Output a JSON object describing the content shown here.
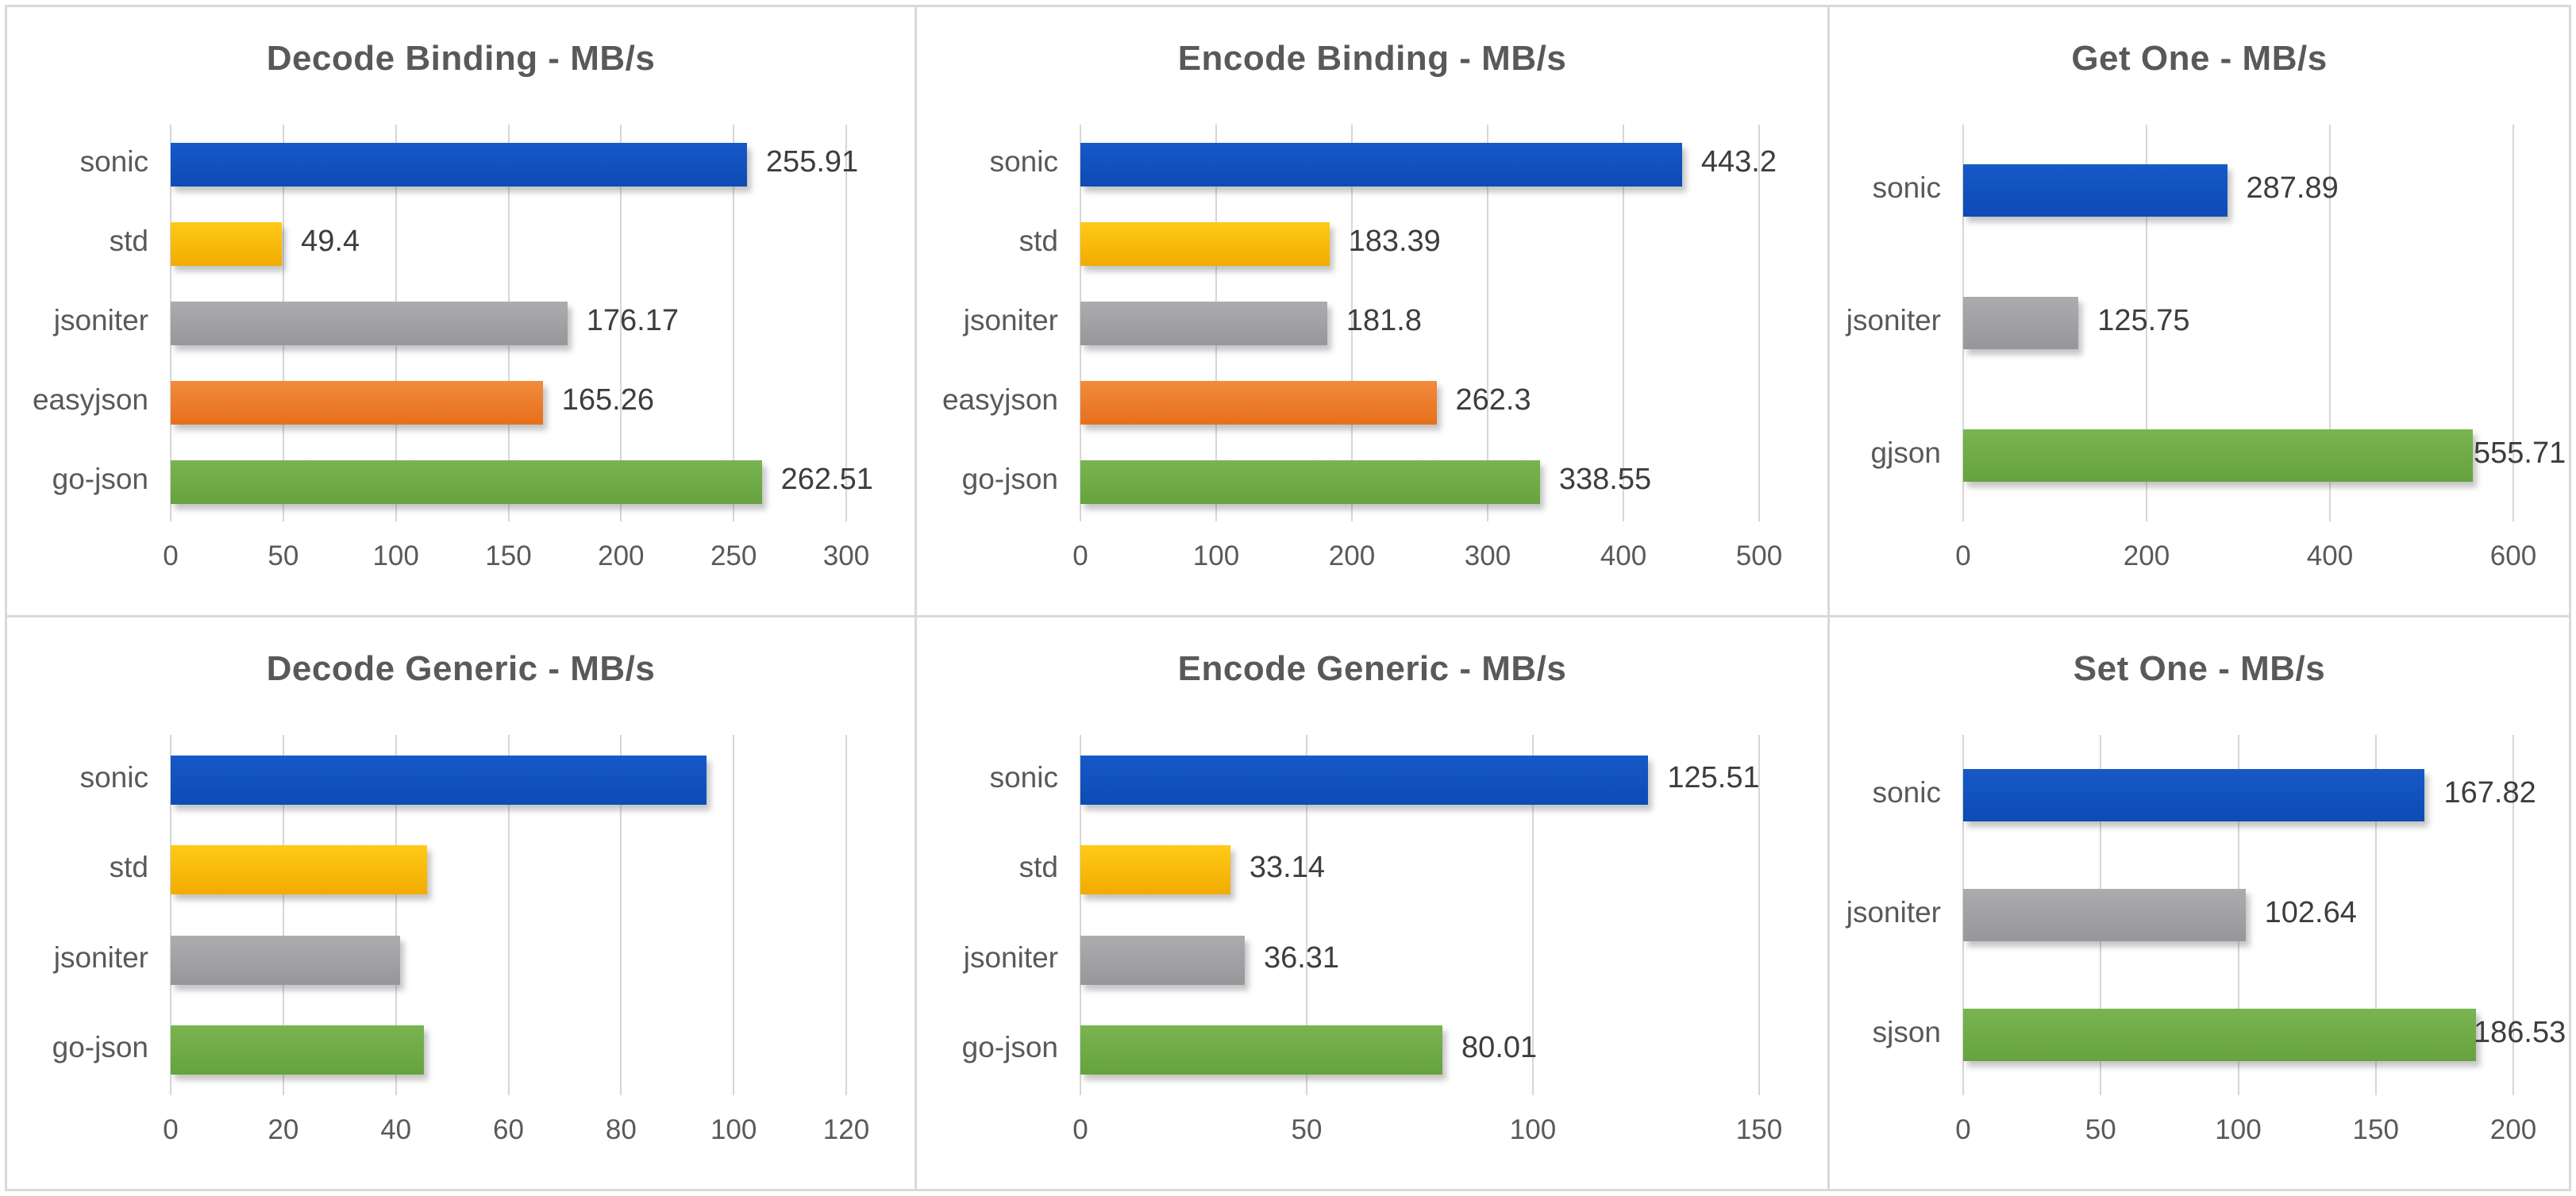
{
  "page": {
    "background": "#ffffff",
    "panel_border_color": "#d9d9d9",
    "gridline_color": "#d6d6d6",
    "title_color": "#595959",
    "label_color": "#595959",
    "value_label_color": "#3d3d3d"
  },
  "palette": {
    "blue": {
      "top": "#1659c7",
      "bottom": "#0d4bb5"
    },
    "yellow": {
      "top": "#ffca18",
      "bottom": "#f2ab00"
    },
    "gray": {
      "top": "#acacaf",
      "bottom": "#97979b"
    },
    "orange": {
      "top": "#f28b3e",
      "bottom": "#e76f1b"
    },
    "green": {
      "top": "#79b451",
      "bottom": "#66a23e"
    }
  },
  "chart_data": [
    {
      "type": "bar",
      "orientation": "horizontal",
      "title": "Decode Binding - MB/s",
      "categories": [
        "sonic",
        "std",
        "jsoniter",
        "easyjson",
        "go-json"
      ],
      "values": [
        255.91,
        49.4,
        176.17,
        165.26,
        262.51
      ],
      "data_labels": [
        "255.91",
        "49.4",
        "176.17",
        "165.26",
        "262.51"
      ],
      "colors": [
        "blue",
        "yellow",
        "gray",
        "orange",
        "green"
      ],
      "xlim": [
        0,
        300
      ],
      "ticks": [
        0,
        50,
        100,
        150,
        200,
        250,
        300
      ],
      "grid": "vertical",
      "legend": "none"
    },
    {
      "type": "bar",
      "orientation": "horizontal",
      "title": "Encode Binding - MB/s",
      "categories": [
        "sonic",
        "std",
        "jsoniter",
        "easyjson",
        "go-json"
      ],
      "values": [
        443.2,
        183.39,
        181.8,
        262.3,
        338.55
      ],
      "data_labels": [
        "443.2",
        "183.39",
        "181.8",
        "262.3",
        "338.55"
      ],
      "colors": [
        "blue",
        "yellow",
        "gray",
        "orange",
        "green"
      ],
      "xlim": [
        0,
        500
      ],
      "ticks": [
        0,
        100,
        200,
        300,
        400,
        500
      ],
      "grid": "vertical",
      "legend": "none"
    },
    {
      "type": "bar",
      "orientation": "horizontal",
      "title": "Get One - MB/s",
      "categories": [
        "sonic",
        "jsoniter",
        "gjson"
      ],
      "values": [
        287.89,
        125.75,
        555.71
      ],
      "data_labels": [
        "287.89",
        "125.75",
        "555.71"
      ],
      "colors": [
        "blue",
        "gray",
        "green"
      ],
      "xlim": [
        0,
        600
      ],
      "ticks": [
        0,
        200,
        400,
        600
      ],
      "grid": "vertical",
      "legend": "none"
    },
    {
      "type": "bar",
      "orientation": "horizontal",
      "title": "Decode Generic - MB/s",
      "categories": [
        "sonic",
        "std",
        "jsoniter",
        "go-json"
      ],
      "values": [
        95.2,
        45.6,
        40.7,
        45.0
      ],
      "data_labels": [
        "",
        "",
        "",
        ""
      ],
      "colors": [
        "blue",
        "yellow",
        "gray",
        "green"
      ],
      "xlim": [
        0,
        120
      ],
      "ticks": [
        0,
        20,
        40,
        60,
        80,
        100,
        120
      ],
      "grid": "vertical",
      "legend": "none"
    },
    {
      "type": "bar",
      "orientation": "horizontal",
      "title": "Encode Generic - MB/s",
      "categories": [
        "sonic",
        "std",
        "jsoniter",
        "go-json"
      ],
      "values": [
        125.51,
        33.14,
        36.31,
        80.01
      ],
      "data_labels": [
        "125.51",
        "33.14",
        "36.31",
        "80.01"
      ],
      "colors": [
        "blue",
        "yellow",
        "gray",
        "green"
      ],
      "xlim": [
        0,
        150
      ],
      "ticks": [
        0,
        50,
        100,
        150
      ],
      "grid": "vertical",
      "legend": "none"
    },
    {
      "type": "bar",
      "orientation": "horizontal",
      "title": "Set One - MB/s",
      "categories": [
        "sonic",
        "jsoniter",
        "sjson"
      ],
      "values": [
        167.82,
        102.64,
        186.53
      ],
      "data_labels": [
        "167.82",
        "102.64",
        "186.53"
      ],
      "colors": [
        "blue",
        "gray",
        "green"
      ],
      "xlim": [
        0,
        200
      ],
      "ticks": [
        0,
        50,
        100,
        150,
        200
      ],
      "grid": "vertical",
      "legend": "none"
    }
  ]
}
